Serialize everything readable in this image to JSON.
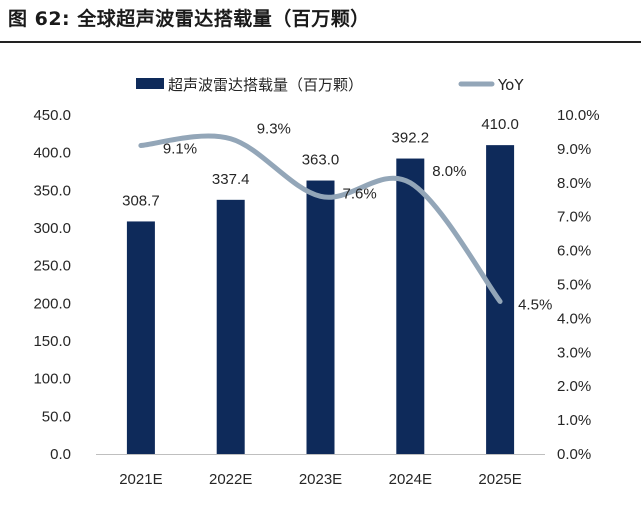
{
  "figure": {
    "title": "图 62:  全球超声波雷达搭载量（百万颗）"
  },
  "chart_data": {
    "type": "bar",
    "categories": [
      "2021E",
      "2022E",
      "2023E",
      "2024E",
      "2025E"
    ],
    "series": [
      {
        "name": "超声波雷达搭载量（百万颗）",
        "type": "bar",
        "axis": "left",
        "color": "#0e2a5a",
        "values": [
          308.7,
          337.4,
          363.0,
          392.2,
          410.0
        ],
        "labels": [
          "308.7",
          "337.4",
          "363.0",
          "392.2",
          "410.0"
        ]
      },
      {
        "name": "YoY",
        "type": "line",
        "axis": "right",
        "color": "#93a6b8",
        "values": [
          9.1,
          9.3,
          7.6,
          8.0,
          4.5
        ],
        "labels": [
          "9.1%",
          "9.3%",
          "7.6%",
          "8.0%",
          "4.5%"
        ]
      }
    ],
    "y_left": {
      "ylim": [
        0,
        450
      ],
      "ticks": [
        0,
        50,
        100,
        150,
        200,
        250,
        300,
        350,
        400,
        450
      ],
      "tick_labels": [
        "0.0",
        "50.0",
        "100.0",
        "150.0",
        "200.0",
        "250.0",
        "300.0",
        "350.0",
        "400.0",
        "450.0"
      ]
    },
    "y_right": {
      "ylim": [
        0,
        10
      ],
      "ticks": [
        0,
        1,
        2,
        3,
        4,
        5,
        6,
        7,
        8,
        9,
        10
      ],
      "tick_labels": [
        "0.0%",
        "1.0%",
        "2.0%",
        "3.0%",
        "4.0%",
        "5.0%",
        "6.0%",
        "7.0%",
        "8.0%",
        "9.0%",
        "10.0%"
      ]
    },
    "grid": false,
    "legend_position": "top"
  }
}
